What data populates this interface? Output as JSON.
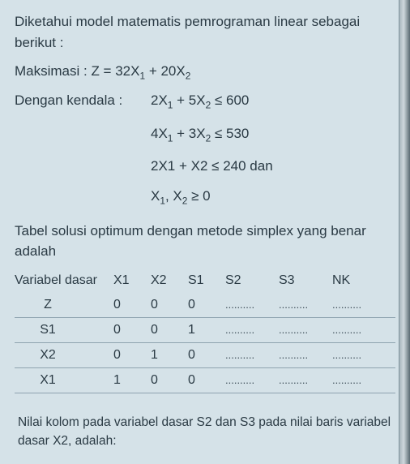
{
  "intro": "Diketahui model matematis pemrograman linear sebagai berikut :",
  "maksimasi_label": "Maksimasi : Z = 32X",
  "maksimasi_mid": " + 20X",
  "kendala_label": "Dengan kendala :",
  "c1_a": "2X",
  "c1_b": " + 5X",
  "c1_c": " ≤ 600",
  "c2_a": "4X",
  "c2_b": " + 3X",
  "c2_c": " ≤ 530",
  "c3": "2X1 + X2 ≤  240 dan",
  "c4_a": "X",
  "c4_b": ", X",
  "c4_c": " ≥ 0",
  "tabel_text": "Tabel solusi optimum dengan metode simplex yang benar adalah",
  "headers": {
    "vd": "Variabel dasar",
    "x1": "X1",
    "x2": "X2",
    "s1": "S1",
    "s2": "S2",
    "s3": "S3",
    "nk": "NK"
  },
  "rows": [
    {
      "vd": "Z",
      "x1": "0",
      "x2": "0",
      "s1": "0",
      "s2": "..........",
      "s3": "..........",
      "nk": ".........."
    },
    {
      "vd": "S1",
      "x1": "0",
      "x2": "0",
      "s1": "1",
      "s2": "..........",
      "s3": "..........",
      "nk": ".........."
    },
    {
      "vd": "X2",
      "x1": "0",
      "x2": "1",
      "s1": "0",
      "s2": "..........",
      "s3": "..........",
      "nk": ".........."
    },
    {
      "vd": "X1",
      "x1": "1",
      "x2": "0",
      "s1": "0",
      "s2": "..........",
      "s3": "..........",
      "nk": ".........."
    }
  ],
  "question": "Nilai kolom pada variabel dasar S2 dan S3 pada nilai baris variabel dasar X2, adalah:",
  "sub1": "1",
  "sub2": "2"
}
